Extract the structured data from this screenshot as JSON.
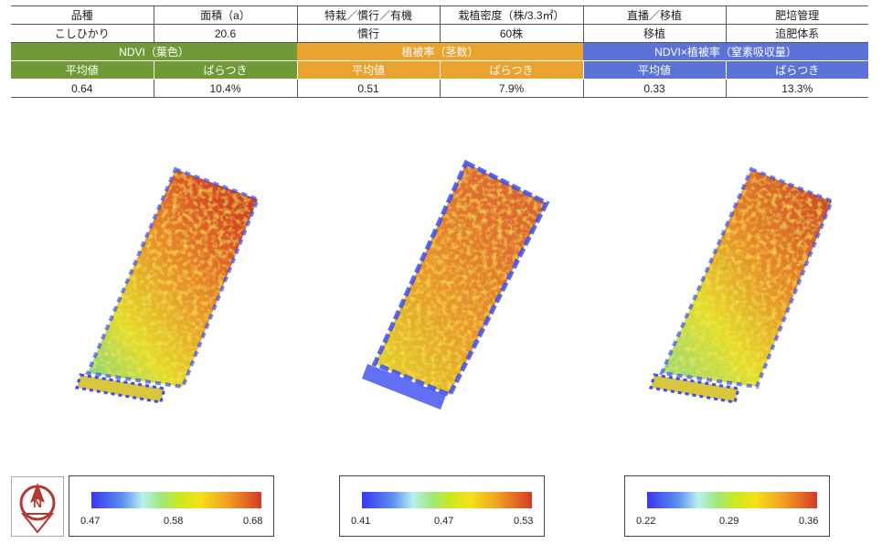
{
  "table": {
    "headers": [
      "品種",
      "面積（a）",
      "特栽／慣行／有機",
      "栽植密度（株/3.3㎡）",
      "直播／移植",
      "肥培管理"
    ],
    "values": [
      "こしひかり",
      "20.6",
      "慣行",
      "60株",
      "移植",
      "追肥体系"
    ],
    "groups": [
      "NDVI（葉色）",
      "植被率（茎数）",
      "NDVI×植被率（窒素吸収量）"
    ],
    "sublabels": [
      "平均値",
      "ばらつき",
      "平均値",
      "ばらつき",
      "平均値",
      "ばらつき"
    ],
    "stats": [
      "0.64",
      "10.4%",
      "0.51",
      "7.9%",
      "0.33",
      "13.3%"
    ]
  },
  "legends": [
    {
      "min": "0.47",
      "mid": "0.58",
      "max": "0.68"
    },
    {
      "min": "0.41",
      "mid": "0.47",
      "max": "0.53"
    },
    {
      "min": "0.22",
      "mid": "0.29",
      "max": "0.36"
    }
  ],
  "compass": {
    "north_label": "N"
  },
  "colors": {
    "ndvi": "#6f9a36",
    "coverage": "#eba330",
    "nitrogen": "#5b73d8"
  }
}
